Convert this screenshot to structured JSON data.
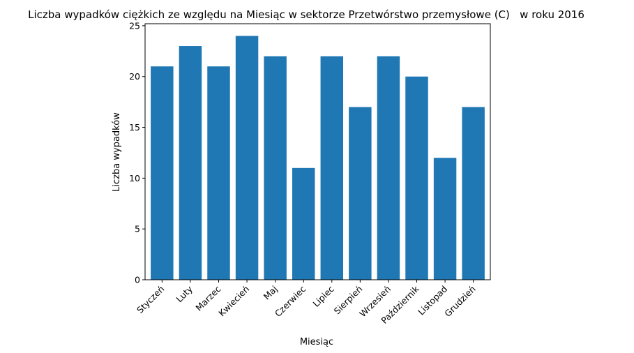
{
  "chart_data": {
    "type": "bar",
    "title": "Liczba wypadków ciężkich ze względu na Miesiąc w sektorze Przetwórstwo przemysłowe (C)   w roku 2016",
    "xlabel": "Miesiąc",
    "ylabel": "Liczba wypadków",
    "categories": [
      "Styczeń",
      "Luty",
      "Marzec",
      "Kwiecień",
      "Maj",
      "Czerwiec",
      "Lipiec",
      "Sierpień",
      "Wrzesień",
      "Październik",
      "Listopad",
      "Grudzień"
    ],
    "values": [
      21,
      23,
      21,
      24,
      22,
      11,
      22,
      17,
      22,
      20,
      12,
      17
    ],
    "ylim": [
      0,
      25.2
    ],
    "yticks": [
      0,
      5,
      10,
      15,
      20,
      25
    ],
    "bar_color": "#1f77b4",
    "grid": false,
    "legend": "none"
  }
}
